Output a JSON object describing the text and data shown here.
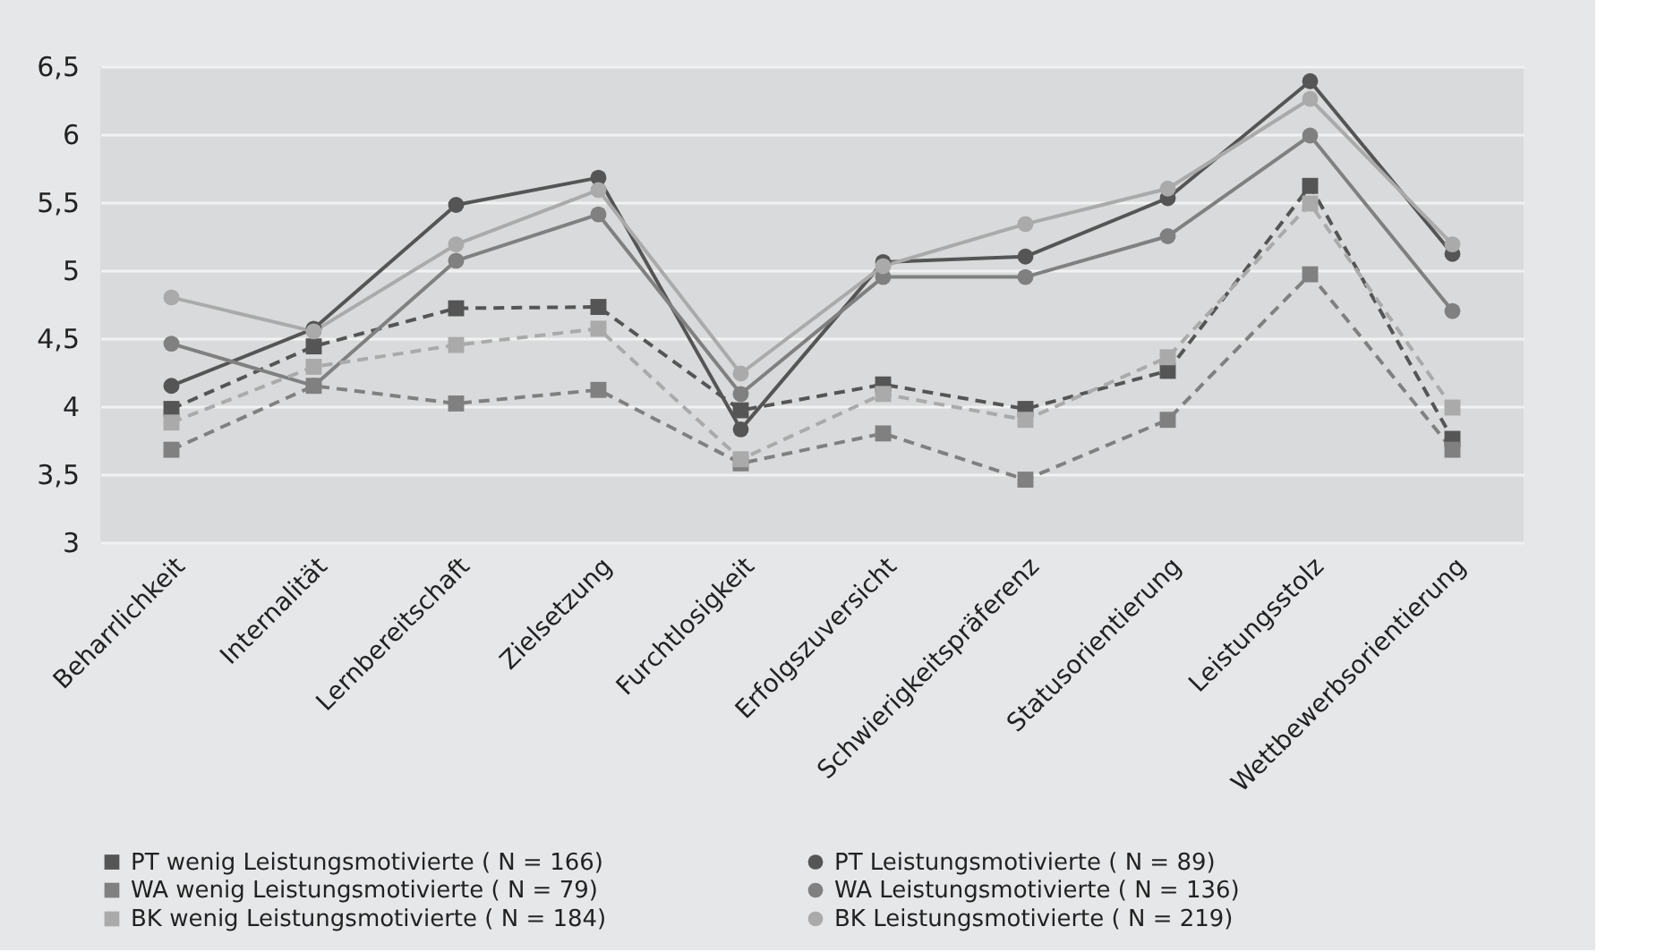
{
  "chart_data": {
    "type": "line",
    "categories": [
      "Beharrlichkeit",
      "Internalität",
      "Lernbereitschaft",
      "Zielsetzung",
      "Furchtlosigkeit",
      "Erfolgszuversicht",
      "Schwierigkeitspräferenz",
      "Statusorientierung",
      "Leistungsstolz",
      "Wettbewerbsorientierung"
    ],
    "series": [
      {
        "name": "PT wenig Leistungsmotivierte ( N = 166)",
        "color": "#555555",
        "marker": "square",
        "line_style": "dashed",
        "values": [
          3.98,
          4.44,
          4.72,
          4.73,
          3.97,
          4.16,
          3.98,
          4.26,
          5.62,
          3.76
        ]
      },
      {
        "name": "PT Leistungsmotivierte ( N = 89)",
        "color": "#555555",
        "marker": "circle",
        "line_style": "solid",
        "values": [
          4.15,
          4.57,
          5.48,
          5.68,
          3.83,
          5.06,
          5.1,
          5.53,
          6.39,
          5.12
        ]
      },
      {
        "name": "WA wenig Leistungsmotivierte ( N = 79)",
        "color": "#808080",
        "marker": "square",
        "line_style": "dashed",
        "values": [
          3.68,
          4.15,
          4.02,
          4.12,
          3.58,
          3.8,
          3.46,
          3.9,
          4.97,
          3.68
        ]
      },
      {
        "name": "WA Leistungsmotivierte ( N = 136)",
        "color": "#808080",
        "marker": "circle",
        "line_style": "solid",
        "values": [
          4.46,
          4.15,
          5.07,
          5.41,
          4.09,
          4.95,
          4.95,
          5.25,
          5.99,
          4.7
        ]
      },
      {
        "name": "BK wenig Leistungsmotivierte ( N = 184)",
        "color": "#aaaaaa",
        "marker": "square",
        "line_style": "dashed",
        "values": [
          3.88,
          4.29,
          4.45,
          4.57,
          3.61,
          4.09,
          3.9,
          4.36,
          5.49,
          3.99
        ]
      },
      {
        "name": "BK Leistungsmotivierte ( N = 219)",
        "color": "#aaaaaa",
        "marker": "circle",
        "line_style": "solid",
        "values": [
          4.8,
          4.55,
          5.19,
          5.59,
          4.24,
          5.03,
          5.34,
          5.6,
          6.26,
          5.19
        ]
      }
    ],
    "ylim": [
      3,
      6.5
    ],
    "yticks": [
      3,
      {
        "value": 3.5,
        "label": "3,5"
      },
      4,
      {
        "value": 4.5,
        "label": "4,5"
      },
      5,
      {
        "value": 5.5,
        "label": "5,5"
      },
      6,
      {
        "value": 6.5,
        "label": "6,5"
      }
    ],
    "grid": "y",
    "legend": "bottom"
  }
}
